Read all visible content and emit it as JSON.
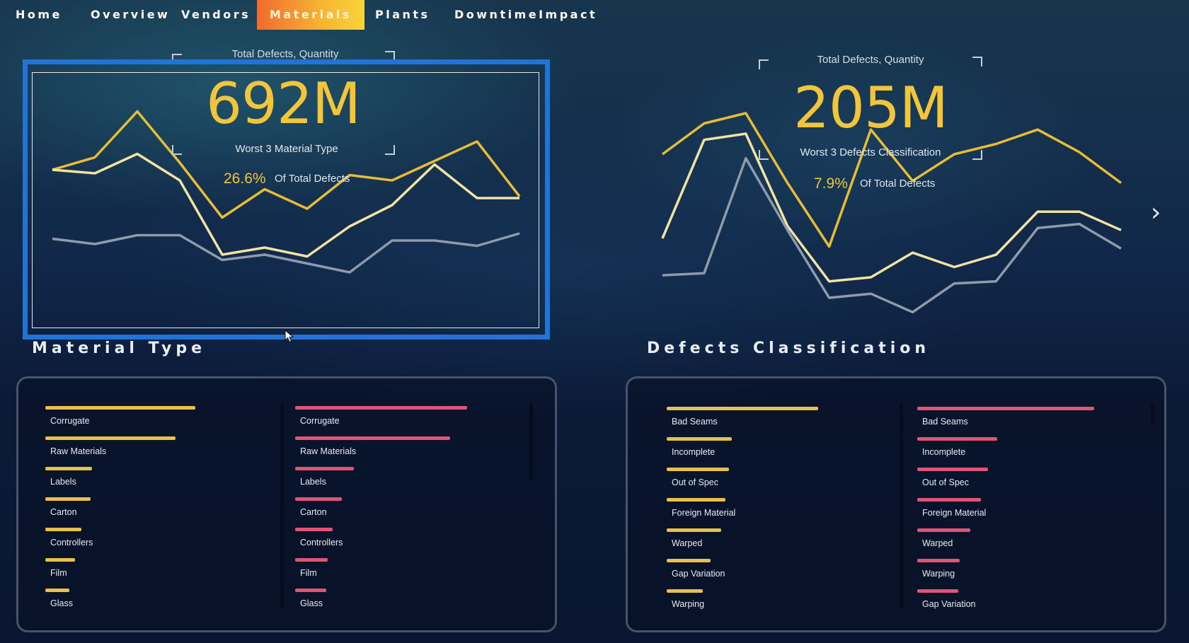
{
  "nav": {
    "items": [
      "Home",
      "Overview",
      "Vendors",
      "Materials",
      "Plants",
      "DowntimeImpact"
    ],
    "active_index": 3
  },
  "left_tile": {
    "title": "Total Defects, Quantity",
    "kpi_value": "692M",
    "kpi_subtitle": "Worst 3 Material Type",
    "pct_value": "26.6%",
    "pct_label": "Of Total Defects"
  },
  "right_tile": {
    "title": "Total Defects, Quantity",
    "kpi_value": "205M",
    "kpi_subtitle": "Worst 3 Defects Classification",
    "pct_value": "7.9%",
    "pct_label": "Of Total Defects"
  },
  "sections": {
    "material_type": "Material Type",
    "defects_classification": "Defects Classification"
  },
  "colors": {
    "series_gold": "#e8bd35",
    "series_cream": "#f3e3a2",
    "series_gray": "#8f9bab",
    "bar_gold": "#e8c04a",
    "bar_pink": "#e05577",
    "accent_selection": "#1f74d6"
  },
  "chart_data": [
    {
      "type": "line",
      "series": [
        {
          "values": [
            0.64,
            0.71,
            0.97,
            0.68,
            0.37,
            0.53,
            0.42,
            0.61,
            0.58,
            0.69,
            0.8,
            0.49
          ],
          "color": "series_gold"
        },
        {
          "values": [
            0.64,
            0.62,
            0.73,
            0.58,
            0.16,
            0.2,
            0.15,
            0.32,
            0.44,
            0.67,
            0.48,
            0.48
          ],
          "color": "series_cream"
        },
        {
          "values": [
            0.25,
            0.22,
            0.27,
            0.27,
            0.13,
            0.16,
            0.11,
            0.06,
            0.24,
            0.24,
            0.21,
            0.28
          ],
          "color": "series_gray"
        }
      ]
    },
    {
      "type": "line",
      "series": [
        {
          "values": [
            0.8,
            0.95,
            1.0,
            0.66,
            0.35,
            0.92,
            0.67,
            0.8,
            0.85,
            0.92,
            0.81,
            0.66
          ],
          "color": "series_gold"
        },
        {
          "values": [
            0.39,
            0.87,
            0.9,
            0.45,
            0.18,
            0.2,
            0.32,
            0.25,
            0.31,
            0.52,
            0.52,
            0.43
          ],
          "color": "series_cream"
        },
        {
          "values": [
            0.21,
            0.22,
            0.78,
            0.43,
            0.1,
            0.12,
            0.03,
            0.17,
            0.18,
            0.44,
            0.46,
            0.34
          ],
          "color": "series_gray"
        }
      ]
    }
  ],
  "material_bars": {
    "labels": [
      "Corrugate",
      "Raw Materials",
      "Labels",
      "Carton",
      "Controllers",
      "Film",
      "Glass"
    ],
    "gold_values": [
      1.0,
      0.87,
      0.31,
      0.3,
      0.24,
      0.2,
      0.16
    ],
    "pink_values": [
      1.0,
      0.9,
      0.34,
      0.27,
      0.22,
      0.19,
      0.18
    ]
  },
  "defect_bars": {
    "gold_labels": [
      "Bad Seams",
      "Incomplete",
      "Out of Spec",
      "Foreign Material",
      "Warped",
      "Gap Variation",
      "Warping"
    ],
    "gold_values": [
      1.0,
      0.43,
      0.41,
      0.39,
      0.36,
      0.29,
      0.24
    ],
    "pink_labels": [
      "Bad Seams",
      "Incomplete",
      "Out of Spec",
      "Foreign Material",
      "Warped",
      "Warping",
      "Gap Variation"
    ],
    "pink_values": [
      1.0,
      0.45,
      0.4,
      0.36,
      0.3,
      0.24,
      0.23
    ]
  }
}
